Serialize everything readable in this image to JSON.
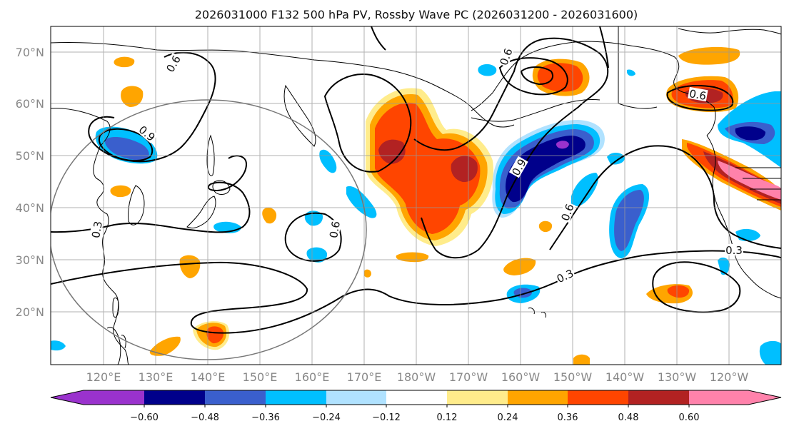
{
  "title": "2026031000 F132 500 hPa PV, Rossby Wave PC (2026031200 - 2026031600)",
  "lat_labels": [
    "70°N",
    "60°N",
    "50°N",
    "40°N",
    "30°N",
    "20°N"
  ],
  "lon_labels": [
    "120°E",
    "130°E",
    "140°E",
    "150°E",
    "160°E",
    "170°E",
    "180°W",
    "170°W",
    "160°W",
    "150°W",
    "140°W",
    "130°W",
    "120°W"
  ],
  "contour_labels": [
    "0.6",
    "0.9",
    "0.3",
    "0.6",
    "0.6",
    "0.9",
    "0.6",
    "0.3",
    "0.3",
    "0.6"
  ],
  "colorbar": {
    "colors": [
      "#9a32cd",
      "#00008b",
      "#3a5fcd",
      "#00bfff",
      "#b0e2ff",
      "#ffffff",
      "#ffec8b",
      "#ffa500",
      "#ff4500",
      "#b22222",
      "#ff82ab"
    ],
    "ticks": [
      "−0.60",
      "−0.48",
      "−0.36",
      "−0.24",
      "−0.12",
      "0.12",
      "0.24",
      "0.36",
      "0.48",
      "0.60"
    ]
  }
}
